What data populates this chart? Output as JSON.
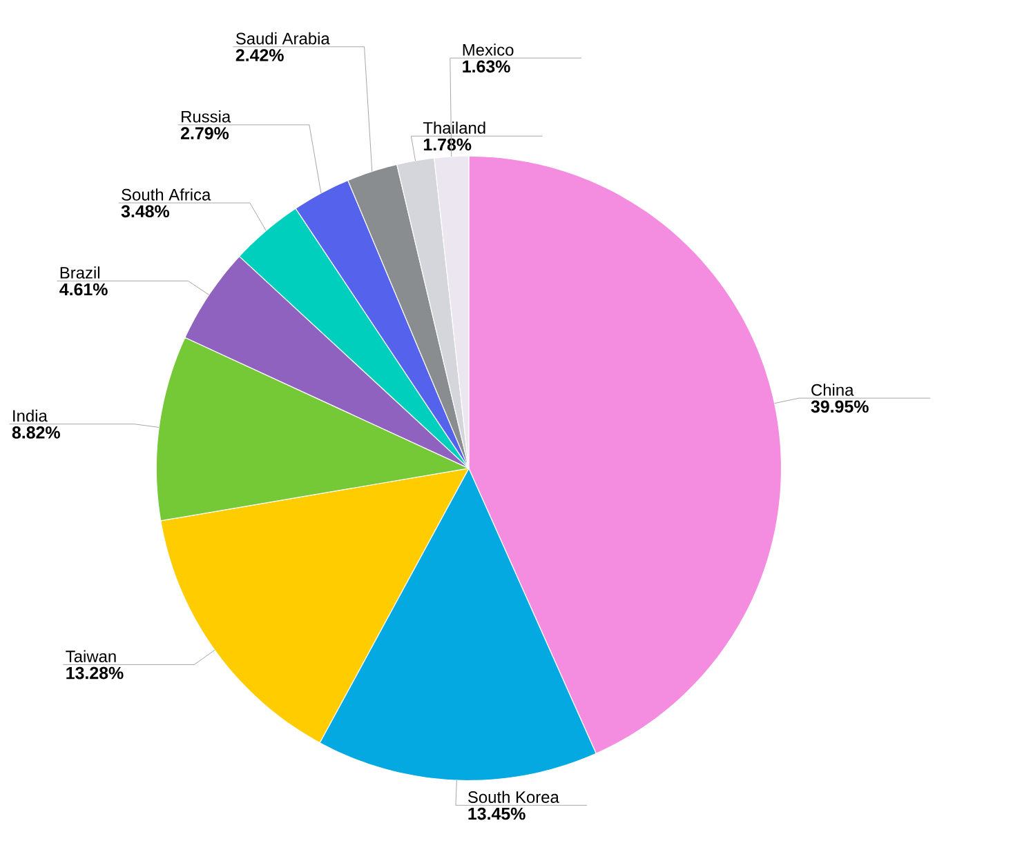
{
  "chart_data": {
    "type": "pie",
    "categories": [
      "China",
      "South Korea",
      "Taiwan",
      "India",
      "Brazil",
      "South Africa",
      "Russia",
      "Saudi Arabia",
      "Thailand",
      "Mexico"
    ],
    "values": [
      39.95,
      13.45,
      13.28,
      8.82,
      4.61,
      3.48,
      2.79,
      2.42,
      1.78,
      1.63
    ],
    "value_labels": [
      "39.95%",
      "13.45%",
      "13.28%",
      "8.82%",
      "4.61%",
      "3.48%",
      "2.79%",
      "2.42%",
      "1.78%",
      "1.63%"
    ],
    "colors": [
      "#f48ddf",
      "#03a9e0",
      "#ffcc00",
      "#76c936",
      "#8f62bf",
      "#00cfbd",
      "#5563ec",
      "#8a8d8f",
      "#d5d5dc",
      "#ebe6f0"
    ]
  }
}
